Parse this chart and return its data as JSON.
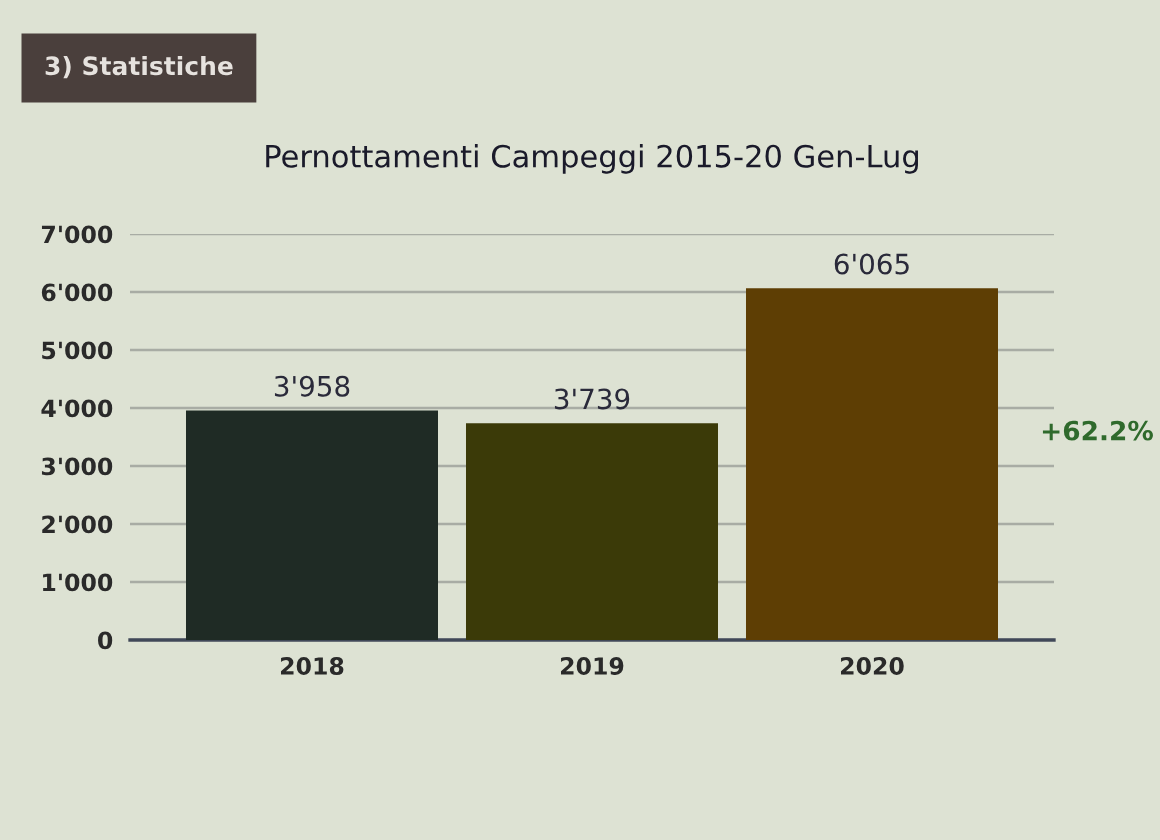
{
  "chart_data": {
    "type": "bar",
    "title": "Pernottamenti Campeggi 2015-20 Gen-Lug",
    "categories": [
      "2018",
      "2019",
      "2020"
    ],
    "values": [
      3958,
      3739,
      6065
    ],
    "colors": [
      "#1f2b25",
      "#3b3a08",
      "#5e3e04"
    ],
    "value_labels": [
      "3'958",
      "3'739",
      "6'065"
    ],
    "ylim": [
      0,
      7000
    ],
    "yticks": [
      0,
      {
        "value": 1000,
        "label": "1'000"
      },
      {
        "value": 2000,
        "label": "2'000"
      },
      {
        "value": 3000,
        "label": "3'000"
      },
      {
        "value": 4000,
        "label": "4'000"
      },
      {
        "value": 5000,
        "label": "5'000"
      },
      {
        "value": 6000,
        "label": "6'000"
      },
      {
        "value": 7000,
        "label": "7'000"
      }
    ],
    "grid": "y",
    "annotations": [
      "3) Statistiche",
      "+62.2%"
    ]
  }
}
